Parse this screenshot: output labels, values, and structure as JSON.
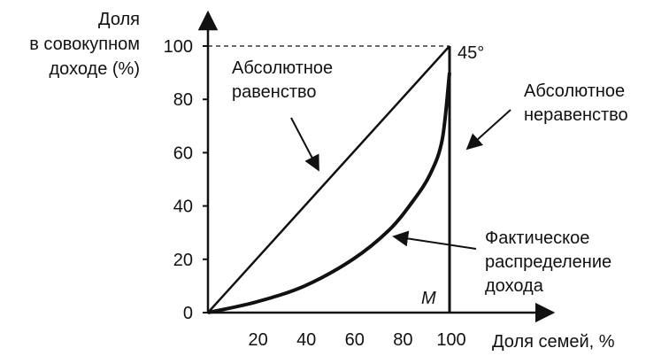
{
  "chart_data": {
    "type": "line",
    "title": "",
    "ylabel_lines": [
      "Доля",
      "в совокупном",
      "доходе (%)"
    ],
    "xlabel": "Доля семей, %",
    "x_ticks": [
      "20",
      "40",
      "60",
      "80",
      "100"
    ],
    "y_ticks": [
      "0",
      "20",
      "40",
      "60",
      "80",
      "100"
    ],
    "xlim": [
      0,
      100
    ],
    "ylim": [
      0,
      100
    ],
    "series": [
      {
        "x": [
          0,
          100
        ],
        "y": [
          0,
          100
        ]
      },
      {
        "x": [
          0,
          20,
          40,
          60,
          75,
          85,
          92,
          97,
          100
        ],
        "y": [
          0,
          4,
          10,
          20,
          31,
          42,
          52,
          65,
          90
        ]
      },
      {
        "x": [
          100,
          100
        ],
        "y": [
          0,
          100
        ]
      }
    ],
    "annotations": {
      "angle": "45°",
      "point_m": "M",
      "equality_lines": [
        "Абсолютное",
        "равенство"
      ],
      "inequality_lines": [
        "Абсолютное",
        "неравенство"
      ],
      "actual_lines": [
        "Фактическое",
        "распределение",
        "дохода"
      ]
    }
  }
}
